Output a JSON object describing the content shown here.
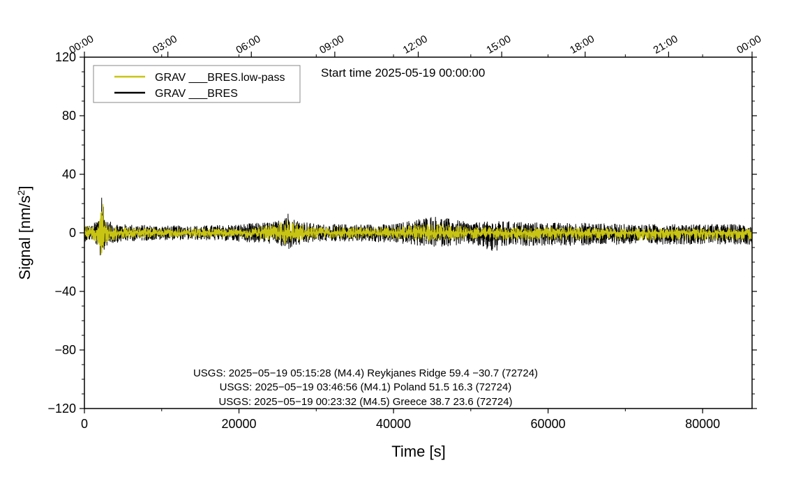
{
  "chart_data": {
    "type": "line",
    "title": "",
    "start_time_label": "Start time 2025-05-19 00:00:00",
    "xlabel": "Time [s]",
    "ylabel_main": "Signal [nm/s",
    "ylabel_sup": "2",
    "ylabel_close": "]",
    "xlim": [
      0,
      86400
    ],
    "ylim": [
      -120,
      120
    ],
    "x_ticks": [
      0,
      20000,
      40000,
      60000,
      80000
    ],
    "x_tick_labels": [
      "0",
      "20000",
      "40000",
      "60000",
      "80000"
    ],
    "y_ticks": [
      120,
      80,
      40,
      0,
      -40,
      -80,
      -120
    ],
    "y_tick_labels": [
      "120",
      "80",
      "40",
      "0",
      "−40",
      "−80",
      "−120"
    ],
    "top_axis": {
      "ticks": [
        0,
        10800,
        21600,
        32400,
        43200,
        54000,
        64800,
        75600,
        86400
      ],
      "labels": [
        "00:00",
        "03:00",
        "06:00",
        "09:00",
        "12:00",
        "15:00",
        "18:00",
        "21:00",
        "00:00"
      ]
    },
    "grid": false,
    "legend": {
      "placement": "top-left",
      "entries": [
        "GRAV ___BRES.low-pass",
        "GRAV ___BRES"
      ]
    },
    "series": [
      {
        "name": "GRAV ___BRES",
        "color": "#000000",
        "envelope_x": [
          0,
          1000,
          2000,
          2100,
          2300,
          2500,
          3000,
          5000,
          10000,
          15000,
          20000,
          25000,
          26000,
          27000,
          30000,
          35000,
          40000,
          45000,
          50000,
          53000,
          55000,
          60000,
          65000,
          70000,
          75000,
          80000,
          86400
        ],
        "envelope_hi": [
          6,
          5,
          12,
          22,
          41,
          15,
          8,
          6,
          5,
          5,
          6,
          8,
          17,
          10,
          6,
          6,
          6,
          12,
          7,
          8,
          8,
          7,
          7,
          6,
          6,
          6,
          6
        ],
        "envelope_lo": [
          -6,
          -5,
          -12,
          -20,
          -36,
          -14,
          -8,
          -6,
          -5,
          -5,
          -6,
          -8,
          -13,
          -10,
          -6,
          -6,
          -7,
          -10,
          -8,
          -14,
          -9,
          -9,
          -9,
          -8,
          -8,
          -8,
          -8
        ]
      },
      {
        "name": "GRAV ___BRES.low-pass",
        "color": "#c8c414",
        "envelope_x": [
          0,
          1000,
          2000,
          2100,
          2300,
          2500,
          3000,
          5000,
          10000,
          15000,
          20000,
          25000,
          26000,
          27000,
          30000,
          35000,
          40000,
          45000,
          50000,
          55000,
          60000,
          65000,
          70000,
          75000,
          80000,
          86400
        ],
        "envelope_hi": [
          5,
          4,
          9,
          18,
          34,
          10,
          6,
          4,
          3,
          3,
          3,
          6,
          12,
          7,
          4,
          4,
          4,
          7,
          4,
          4,
          4,
          4,
          3,
          3,
          3,
          3
        ],
        "envelope_lo": [
          -5,
          -4,
          -9,
          -14,
          -18,
          -10,
          -6,
          -4,
          -3,
          -3,
          -3,
          -6,
          -8,
          -6,
          -4,
          -4,
          -4,
          -6,
          -4,
          -5,
          -5,
          -5,
          -5,
          -5,
          -5,
          -5
        ]
      }
    ],
    "annotations": [
      "USGS: 2025−05−19 05:15:28 (M4.4) Reykjanes Ridge 59.4 −30.7 (72724)",
      "USGS: 2025−05−19 03:46:56 (M4.1) Poland 51.5 16.3 (72724)",
      "USGS: 2025−05−19 00:23:32 (M4.5) Greece 38.7 23.6 (72724)"
    ]
  }
}
